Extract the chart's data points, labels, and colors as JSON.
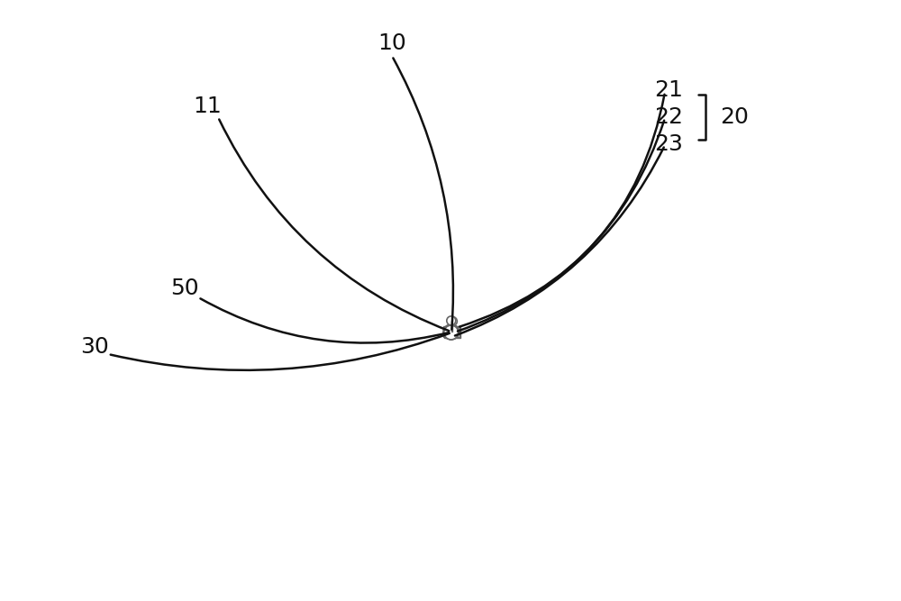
{
  "bg_color": "#ffffff",
  "line_color": "#666666",
  "dark_line": "#111111",
  "dashed_color": "#bbbbbb",
  "fig_width": 10.0,
  "fig_height": 6.67,
  "dpi": 100
}
